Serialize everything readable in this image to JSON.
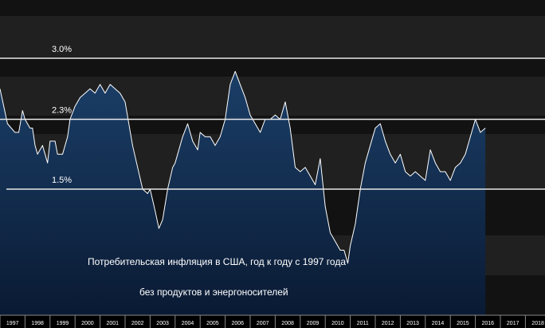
{
  "chart_data": {
    "type": "area",
    "title": "",
    "xlabel": "",
    "ylabel": "",
    "x_tick_labels": [
      "1997",
      "1998",
      "1999",
      "2000",
      "2001",
      "2002",
      "2003",
      "2004",
      "2005",
      "2006",
      "2007",
      "2008",
      "2009",
      "2010",
      "2011",
      "2012",
      "2013",
      "2014",
      "2015",
      "2016",
      "2017",
      "2018"
    ],
    "reference_lines": [
      {
        "value": 3.0,
        "label": "3.0%"
      },
      {
        "value": 2.3,
        "label": "2.3%"
      },
      {
        "value": 1.5,
        "label": "1.5%"
      }
    ],
    "annotations": [
      "Потребительская инфляция в США, год к году с 1997 года",
      "без продуктов и энергоносителей"
    ],
    "ylim": [
      0.0,
      3.5
    ],
    "x_range": [
      1997.0,
      2018.5
    ],
    "grid": true,
    "legend": "none",
    "colors": {
      "background": "#000000",
      "band_dark": "#121212",
      "band_light": "#202020",
      "line": "#ffffff",
      "area_top": "#1b3f68",
      "area_bottom": "#0a1a33",
      "reference_line": "#e8e8e8"
    },
    "series": [
      {
        "x": [
          1997.0,
          1997.15,
          1997.3,
          1997.45,
          1997.6,
          1997.75,
          1997.9,
          1998.0,
          1998.2,
          1998.3,
          1998.4,
          1998.5,
          1998.7,
          1998.9,
          1999.0,
          1999.2,
          1999.3,
          1999.5,
          1999.7,
          1999.8,
          2000.0,
          2000.2,
          2000.4,
          2000.6,
          2000.8,
          2001.0,
          2001.2,
          2001.4,
          2001.6,
          2001.8,
          2002.0,
          2002.3,
          2002.5,
          2002.7,
          2002.9,
          2003.0,
          2003.2,
          2003.35,
          2003.5,
          2003.7,
          2003.9,
          2004.0,
          2004.3,
          2004.5,
          2004.7,
          2004.9,
          2005.0,
          2005.2,
          2005.4,
          2005.6,
          2005.8,
          2006.0,
          2006.2,
          2006.4,
          2006.6,
          2006.8,
          2007.0,
          2007.2,
          2007.4,
          2007.6,
          2007.8,
          2008.0,
          2008.2,
          2008.4,
          2008.6,
          2008.8,
          2009.0,
          2009.2,
          2009.4,
          2009.6,
          2009.8,
          2010.0,
          2010.2,
          2010.4,
          2010.6,
          2010.75,
          2010.9,
          2011.0,
          2011.2,
          2011.4,
          2011.6,
          2011.8,
          2012.0,
          2012.2,
          2012.4,
          2012.6,
          2012.8,
          2013.0,
          2013.2,
          2013.4,
          2013.6,
          2013.8,
          2014.0,
          2014.2,
          2014.4,
          2014.6,
          2014.8,
          2015.0,
          2015.2,
          2015.4,
          2015.6,
          2015.8,
          2016.0,
          2016.2,
          2016.4
        ],
        "values": [
          2.65,
          2.45,
          2.25,
          2.2,
          2.15,
          2.15,
          2.4,
          2.3,
          2.2,
          2.2,
          2.0,
          1.9,
          2.0,
          1.8,
          2.05,
          2.05,
          1.9,
          1.9,
          2.1,
          2.3,
          2.45,
          2.55,
          2.6,
          2.65,
          2.6,
          2.7,
          2.6,
          2.7,
          2.65,
          2.6,
          2.5,
          2.0,
          1.75,
          1.5,
          1.45,
          1.5,
          1.25,
          1.05,
          1.15,
          1.5,
          1.75,
          1.8,
          2.1,
          2.25,
          2.05,
          1.95,
          2.15,
          2.1,
          2.1,
          2.0,
          2.1,
          2.3,
          2.7,
          2.85,
          2.7,
          2.55,
          2.35,
          2.25,
          2.15,
          2.3,
          2.3,
          2.35,
          2.3,
          2.5,
          2.2,
          1.75,
          1.7,
          1.75,
          1.65,
          1.55,
          1.85,
          1.3,
          1.0,
          0.9,
          0.8,
          0.8,
          0.65,
          0.85,
          1.1,
          1.5,
          1.8,
          2.0,
          2.2,
          2.25,
          2.05,
          1.9,
          1.8,
          1.9,
          1.7,
          1.65,
          1.7,
          1.65,
          1.6,
          1.95,
          1.8,
          1.7,
          1.7,
          1.6,
          1.75,
          1.8,
          1.9,
          2.1,
          2.3,
          2.15,
          2.2
        ]
      }
    ]
  }
}
